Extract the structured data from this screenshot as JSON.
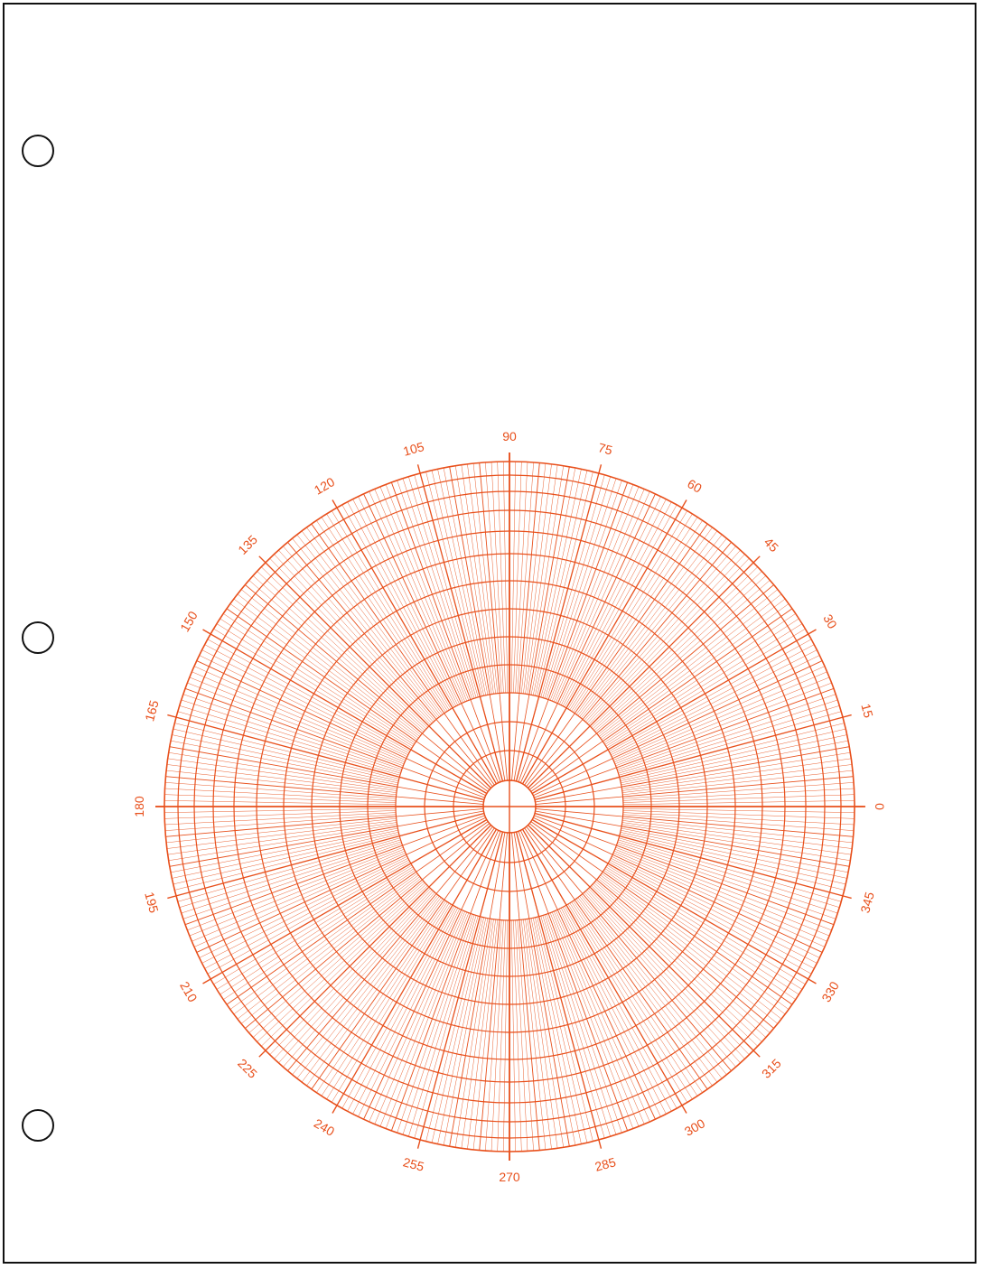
{
  "page": {
    "line_color": "#e8501c",
    "border_color": "#111111",
    "background": "#ffffff"
  },
  "punch_holes": {
    "count": 3,
    "icon": "binder-hole-icon"
  },
  "polar_grid": {
    "angle_labels": [
      "0",
      "15",
      "30",
      "45",
      "60",
      "75",
      "90",
      "105",
      "120",
      "135",
      "150",
      "165",
      "180",
      "195",
      "210",
      "225",
      "240",
      "255",
      "270",
      "285",
      "300",
      "315",
      "330",
      "345"
    ],
    "label_step_degrees": 15,
    "fine_radial_step_degrees": 1,
    "inner_radial_step_degrees": 5,
    "axis_lines": "crosshair"
  }
}
